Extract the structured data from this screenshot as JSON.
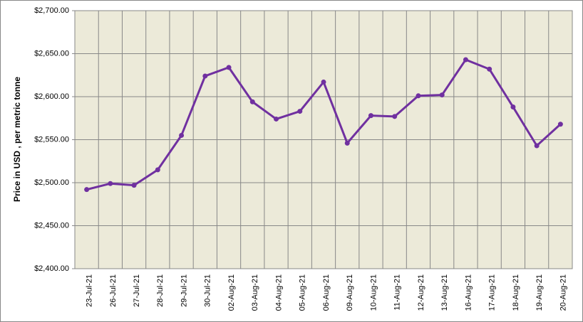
{
  "chart_data": {
    "type": "line",
    "y_label": "Price in USD , per metric tonne",
    "categories": [
      "23-Jul-21",
      "26-Jul-21",
      "27-Jul-21",
      "28-Jul-21",
      "29-Jul-21",
      "30-Jul-21",
      "02-Aug-21",
      "03-Aug-21",
      "04-Aug-21",
      "05-Aug-21",
      "06-Aug-21",
      "09-Aug-21",
      "10-Aug-21",
      "11-Aug-21",
      "12-Aug-21",
      "13-Aug-21",
      "16-Aug-21",
      "17-Aug-21",
      "18-Aug-21",
      "19-Aug-21",
      "20-Aug-21"
    ],
    "values": [
      2492,
      2499,
      2497,
      2515,
      2555,
      2624,
      2634,
      2594,
      2574,
      2583,
      2617,
      2546,
      2578,
      2577,
      2601,
      2602,
      2643,
      2632,
      2588,
      2543,
      2568
    ],
    "color": "#7030a0",
    "ylim": [
      2400,
      2700
    ],
    "yticks": [
      {
        "value": 2400,
        "label": "$2,400.00"
      },
      {
        "value": 2450,
        "label": "$2,450.00"
      },
      {
        "value": 2500,
        "label": "$2,500.00"
      },
      {
        "value": 2550,
        "label": "$2,550.00"
      },
      {
        "value": 2600,
        "label": "$2,600.00"
      },
      {
        "value": 2650,
        "label": "$2,650.00"
      },
      {
        "value": 2700,
        "label": "$2,700.00"
      }
    ],
    "grid": true
  }
}
